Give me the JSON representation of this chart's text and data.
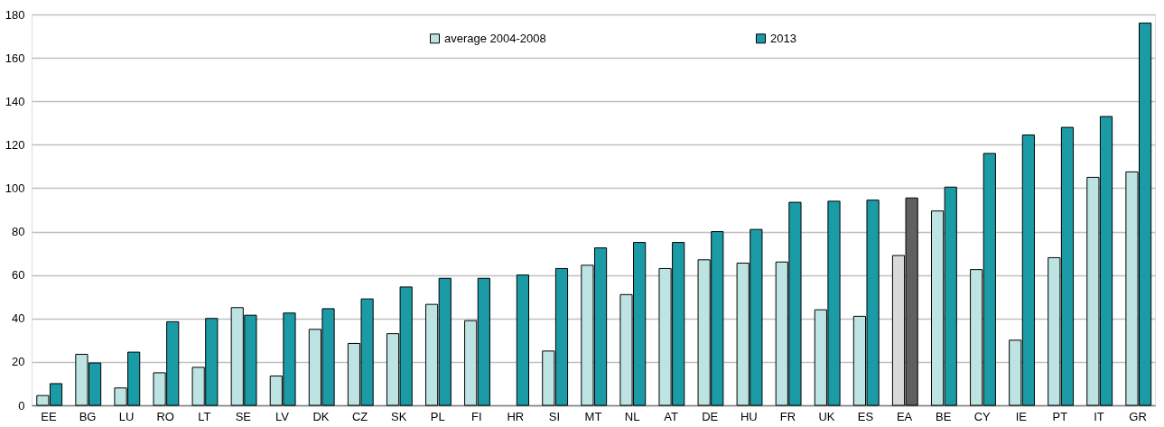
{
  "chart_data": {
    "type": "bar",
    "categories": [
      "EE",
      "BG",
      "LU",
      "RO",
      "LT",
      "SE",
      "LV",
      "DK",
      "CZ",
      "SK",
      "PL",
      "FI",
      "HR",
      "SI",
      "MT",
      "NL",
      "AT",
      "DE",
      "HU",
      "FR",
      "UK",
      "ES",
      "EA",
      "BE",
      "CY",
      "IE",
      "PT",
      "IT",
      "GR"
    ],
    "series": [
      {
        "name": "average 2004-2008",
        "color": "#bde3e3",
        "colors": [
          "#bde3e3",
          "#bde3e3",
          "#bde3e3",
          "#bde3e3",
          "#bde3e3",
          "#bde3e3",
          "#bde3e3",
          "#bde3e3",
          "#bde3e3",
          "#bde3e3",
          "#bde3e3",
          "#bde3e3",
          "#bde3e3",
          "#bde3e3",
          "#bde3e3",
          "#bde3e3",
          "#bde3e3",
          "#bde3e3",
          "#bde3e3",
          "#bde3e3",
          "#bde3e3",
          "#bde3e3",
          "#d9d9d9",
          "#bde3e3",
          "#bde3e3",
          "#bde3e3",
          "#bde3e3",
          "#bde3e3",
          "#bde3e3"
        ],
        "values": [
          4.5,
          23.5,
          8,
          15,
          17.5,
          45,
          13.5,
          35,
          28.5,
          33,
          46.5,
          39,
          null,
          25,
          64.5,
          51,
          63,
          67,
          65.5,
          66,
          44,
          41,
          69,
          89.5,
          62.5,
          30,
          68,
          105,
          107.5
        ]
      },
      {
        "name": "2013",
        "color": "#1a9ba6",
        "colors": [
          "#1a9ba6",
          "#1a9ba6",
          "#1a9ba6",
          "#1a9ba6",
          "#1a9ba6",
          "#1a9ba6",
          "#1a9ba6",
          "#1a9ba6",
          "#1a9ba6",
          "#1a9ba6",
          "#1a9ba6",
          "#1a9ba6",
          "#1a9ba6",
          "#1a9ba6",
          "#1a9ba6",
          "#1a9ba6",
          "#1a9ba6",
          "#1a9ba6",
          "#1a9ba6",
          "#1a9ba6",
          "#1a9ba6",
          "#1a9ba6",
          "#5f6160",
          "#1a9ba6",
          "#1a9ba6",
          "#1a9ba6",
          "#1a9ba6",
          "#1a9ba6",
          "#1a9ba6"
        ],
        "values": [
          10,
          19.5,
          24.5,
          38.5,
          40,
          41.5,
          42.5,
          44.5,
          49,
          54.5,
          58.5,
          58.5,
          60,
          63,
          72.5,
          75,
          75,
          80,
          81,
          93.5,
          94,
          94.5,
          95.5,
          100.5,
          116,
          124.5,
          128,
          133,
          176
        ]
      }
    ],
    "ylim": [
      0,
      180
    ],
    "yticks": [
      0,
      20,
      40,
      60,
      80,
      100,
      120,
      140,
      160,
      180
    ],
    "grid": "y",
    "legend": "top"
  }
}
